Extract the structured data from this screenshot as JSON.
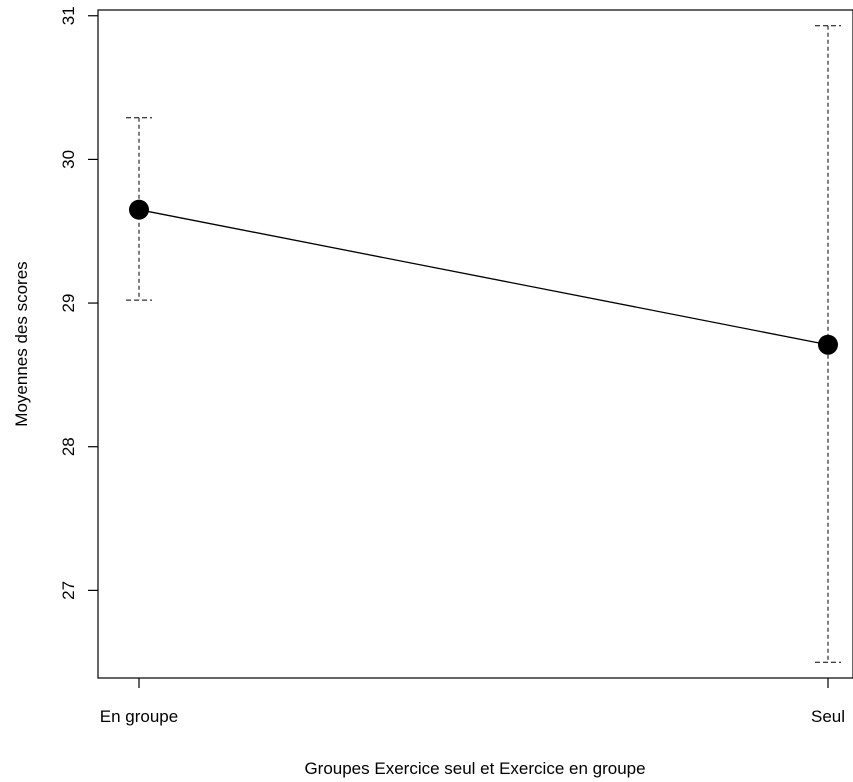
{
  "chart_data": {
    "type": "line",
    "title": "",
    "xlabel": "Groupes Exercice seul et Exercice en groupe",
    "ylabel": "Moyennes des scores",
    "categories": [
      "En groupe",
      "Seul"
    ],
    "series": [
      {
        "values": [
          29.65,
          28.71
        ],
        "error_lower": [
          29.02,
          26.5
        ],
        "error_upper": [
          30.29,
          30.93
        ]
      }
    ],
    "yticks": [
      27,
      28,
      29,
      30,
      31
    ],
    "ylim": [
      26.39,
      31.04
    ],
    "grid": false,
    "legend": "none",
    "error_bar_style": "dashed",
    "marker": "filled-circle",
    "color": "#000000"
  }
}
